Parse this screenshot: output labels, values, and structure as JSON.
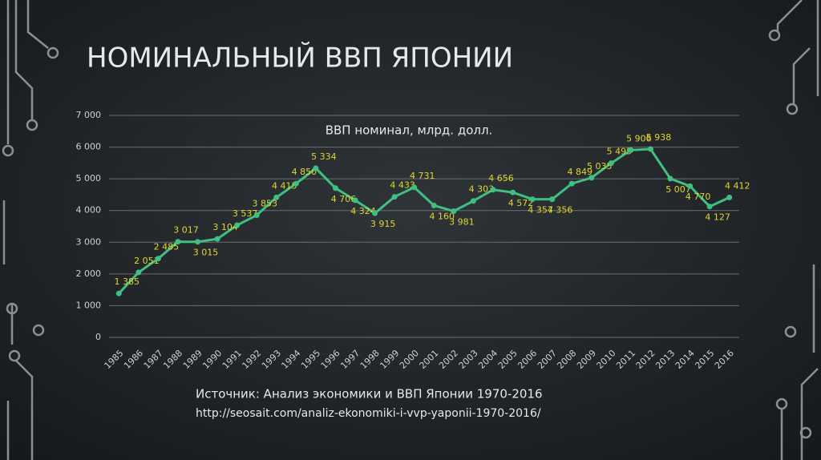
{
  "chart_data": {
    "type": "line",
    "title": "НОМИНАЛЬНЫЙ ВВП ЯПОНИИ",
    "subtitle": "ВВП номинал, млрд. долл.",
    "categories": [
      "1985",
      "1986",
      "1987",
      "1988",
      "1989",
      "1990",
      "1991",
      "1992",
      "1993",
      "1994",
      "1995",
      "1996",
      "1997",
      "1998",
      "1999",
      "2000",
      "2001",
      "2002",
      "2003",
      "2004",
      "2005",
      "2006",
      "2007",
      "2008",
      "2009",
      "2010",
      "2011",
      "2012",
      "2013",
      "2014",
      "2015",
      "2016"
    ],
    "series": [
      {
        "name": "ВВП номинал, млрд. долл.",
        "color": "#3fbf82",
        "values": [
          1385,
          2051,
          2485,
          3017,
          3015,
          3104,
          3537,
          3853,
          4415,
          4850,
          5334,
          4706,
          4324,
          3915,
          4433,
          4731,
          4160,
          3981,
          4303,
          4656,
          4572,
          4357,
          4356,
          4849,
          5035,
          5495,
          5906,
          5938,
          5007,
          4770,
          4127,
          4412
        ],
        "value_labels": [
          "1 385",
          "2 051",
          "2 485",
          "3 017",
          "3 015",
          "3 104",
          "3 537",
          "3 853",
          "4 415",
          "4 850",
          "5 334",
          "4 706",
          "4 324",
          "3 915",
          "4 433",
          "4 731",
          "4 160",
          "3 981",
          "4 303",
          "4 656",
          "4 572",
          "4 357",
          "4 356",
          "4 849",
          "5 035",
          "5 495",
          "5 906",
          "5 938",
          "5 007",
          "4 770",
          "4 127",
          "4 412"
        ],
        "label_color": "#e2d62a"
      }
    ],
    "ylim": [
      0,
      7000
    ],
    "yticks": [
      0,
      {
        "value": 1000,
        "label": "1 000"
      },
      {
        "value": 2000,
        "label": "2 000"
      },
      {
        "value": 3000,
        "label": "3 000"
      },
      {
        "value": 4000,
        "label": "4 000"
      },
      {
        "value": 5000,
        "label": "5 000"
      },
      {
        "value": 6000,
        "label": "6 000"
      },
      {
        "value": 7000,
        "label": "7 000"
      }
    ],
    "grid": true
  },
  "source": {
    "text": "Источник: Анализ экономики и ВВП Японии 1970-2016",
    "url": "http://seosait.com/analiz-ekonomiki-i-vvp-yaponii-1970-2016/"
  }
}
